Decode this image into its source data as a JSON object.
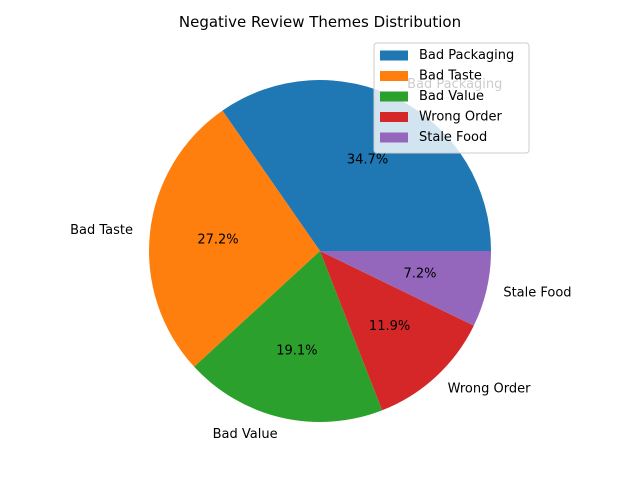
{
  "chart_data": {
    "type": "pie",
    "title": "Negative Review Themes Distribution",
    "categories": [
      "Bad Packaging",
      "Bad Taste",
      "Bad Value",
      "Wrong Order",
      "Stale Food"
    ],
    "values": [
      34.7,
      27.2,
      19.1,
      11.9,
      7.2
    ],
    "percent_labels": [
      "34.7%",
      "27.2%",
      "19.1%",
      "11.9%",
      "7.2%"
    ],
    "colors": [
      "#1f77b4",
      "#ff7f0e",
      "#2ca02c",
      "#d62728",
      "#9467bd"
    ],
    "start_angle_deg": 0,
    "direction": "counterclockwise",
    "legend": {
      "placement": "upper-right",
      "entries": [
        "Bad Packaging",
        "Bad Taste",
        "Bad Value",
        "Wrong Order",
        "Stale Food"
      ]
    }
  }
}
